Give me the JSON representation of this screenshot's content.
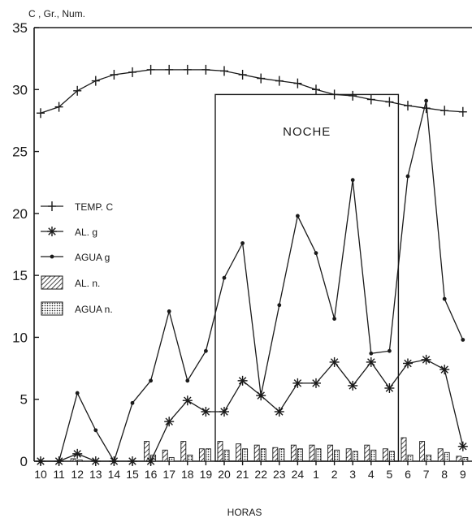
{
  "chart_data": {
    "type": "line",
    "ylabel": "C , Gr., Num.",
    "xlabel": "HORAS",
    "ylim": [
      0,
      35
    ],
    "yticks": [
      0,
      5,
      10,
      15,
      20,
      25,
      30,
      35
    ],
    "categories": [
      "10",
      "11",
      "12",
      "13",
      "14",
      "15",
      "16",
      "17",
      "18",
      "19",
      "20",
      "21",
      "22",
      "23",
      "24",
      "1",
      "2",
      "3",
      "4",
      "5",
      "6",
      "7",
      "8",
      "9"
    ],
    "annotation": "NOCHE",
    "night_span": [
      "20",
      "5"
    ],
    "series": [
      {
        "name": "TEMP. C",
        "marker": "plus",
        "values": [
          28.1,
          28.6,
          29.9,
          30.7,
          31.2,
          31.4,
          31.6,
          31.6,
          31.6,
          31.6,
          31.5,
          31.2,
          30.9,
          30.7,
          30.5,
          30.0,
          29.6,
          29.5,
          29.2,
          29.0,
          28.7,
          28.5,
          28.3,
          28.2
        ]
      },
      {
        "name": "AL. g",
        "marker": "asterisk",
        "values": [
          0,
          0,
          0.6,
          0,
          0,
          0,
          0,
          3.2,
          4.9,
          4.0,
          4.0,
          6.5,
          5.3,
          4.0,
          6.3,
          6.3,
          8.0,
          6.1,
          8.0,
          5.9,
          7.9,
          8.2,
          7.4,
          1.2
        ]
      },
      {
        "name": "AGUA g",
        "marker": "dot",
        "values": [
          0,
          0,
          5.5,
          2.5,
          0,
          4.7,
          6.5,
          12.1,
          6.5,
          8.9,
          14.8,
          17.6,
          5.3,
          12.6,
          19.8,
          16.8,
          11.5,
          22.7,
          8.7,
          8.9,
          23.0,
          29.1,
          13.1,
          9.8
        ]
      },
      {
        "name": "AL. n.",
        "type": "bar",
        "pattern": "hatch",
        "values": [
          0,
          0,
          0.2,
          0,
          0,
          0,
          1.6,
          0.9,
          1.6,
          1.0,
          1.6,
          1.4,
          1.3,
          1.1,
          1.3,
          1.3,
          1.3,
          1.0,
          1.3,
          1.0,
          1.9,
          1.6,
          1.0,
          0.4
        ]
      },
      {
        "name": "AGUA n.",
        "type": "bar",
        "pattern": "dotted",
        "values": [
          0,
          0,
          0.1,
          0,
          0,
          0,
          0.5,
          0.3,
          0.5,
          1.0,
          0.9,
          1.0,
          1.0,
          1.0,
          1.0,
          1.0,
          0.9,
          0.8,
          0.9,
          0.8,
          0.5,
          0.5,
          0.7,
          0.3
        ]
      }
    ]
  }
}
